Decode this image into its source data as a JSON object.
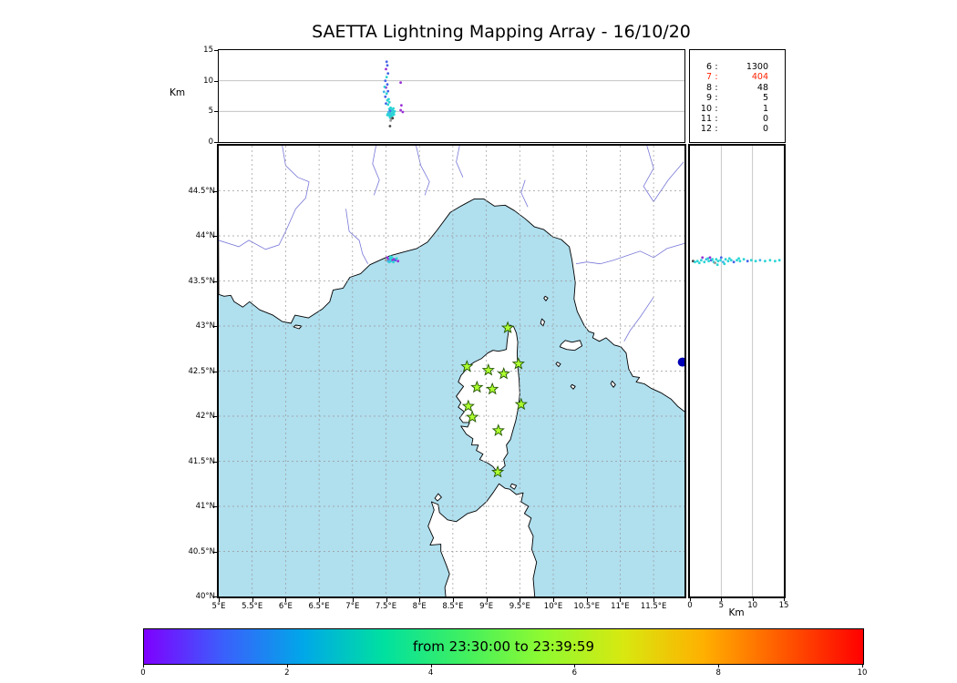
{
  "title": "SAETTA Lightning Mapping Array - 16/10/20",
  "colors": {
    "sea": "#b0dfee",
    "land": "#ffffff",
    "coast": "#000000",
    "river": "#7878d8",
    "grid_map": "#999999",
    "grid_panel": "#bbbbbb",
    "lake": "#0000b4",
    "star_fill": "#adff2f",
    "star_edge": "#225500",
    "legend_highlight": "#ff2200",
    "points": {
      "c": "#2bd4d4",
      "t": "#41b6e8",
      "b": "#4663e8",
      "p": "#9a30d6",
      "g": "#999999",
      "k": "#444444"
    }
  },
  "station_legend": {
    "rows": [
      {
        "n": "6",
        "count": "1300",
        "highlight": false
      },
      {
        "n": "7",
        "count": "404",
        "highlight": true
      },
      {
        "n": "8",
        "count": "48",
        "highlight": false
      },
      {
        "n": "9",
        "count": "5",
        "highlight": false
      },
      {
        "n": "10",
        "count": "1",
        "highlight": false
      },
      {
        "n": "11",
        "count": "0",
        "highlight": false
      },
      {
        "n": "12",
        "count": "0",
        "highlight": false
      }
    ]
  },
  "alt_panel": {
    "axis_label": "Km",
    "ylim": [
      0,
      15
    ],
    "ticks": [
      {
        "value": 15,
        "label": "15"
      },
      {
        "value": 10,
        "label": "10"
      },
      {
        "value": 5,
        "label": "5"
      },
      {
        "value": 0,
        "label": "0"
      }
    ]
  },
  "map_panel": {
    "lat_ticks": [
      {
        "value": 44.5,
        "label": "44.5°N"
      },
      {
        "value": 44,
        "label": "44°N"
      },
      {
        "value": 43.5,
        "label": "43.5°N"
      },
      {
        "value": 43,
        "label": "43°N"
      },
      {
        "value": 42.5,
        "label": "42.5°N"
      },
      {
        "value": 42,
        "label": "42°N"
      },
      {
        "value": 41.5,
        "label": "41.5°N"
      },
      {
        "value": 41,
        "label": "41°N"
      },
      {
        "value": 40.5,
        "label": "40.5°N"
      },
      {
        "value": 40,
        "label": "40°N"
      }
    ],
    "lon_ticks": [
      {
        "value": 5,
        "label": "5°E"
      },
      {
        "value": 5.5,
        "label": "5.5°E"
      },
      {
        "value": 6,
        "label": "6°E"
      },
      {
        "value": 6.5,
        "label": "6.5°E"
      },
      {
        "value": 7,
        "label": "7°E"
      },
      {
        "value": 7.5,
        "label": "7.5°E"
      },
      {
        "value": 8,
        "label": "8°E"
      },
      {
        "value": 8.5,
        "label": "8.5°E"
      },
      {
        "value": 9,
        "label": "9°E"
      },
      {
        "value": 9.5,
        "label": "9.5°E"
      },
      {
        "value": 10,
        "label": "10°E"
      },
      {
        "value": 10.5,
        "label": "10.5°E"
      },
      {
        "value": 11,
        "label": "11°E"
      },
      {
        "value": 11.5,
        "label": "11.5°E"
      }
    ]
  },
  "lat_panel": {
    "axis_label": "Km",
    "xlim": [
      0,
      15
    ],
    "ticks": [
      {
        "value": 0,
        "label": "0"
      },
      {
        "value": 5,
        "label": "5"
      },
      {
        "value": 10,
        "label": "10"
      },
      {
        "value": 15,
        "label": "15"
      }
    ]
  },
  "colorbar": {
    "label": "from 23:30:00 to 23:39:59",
    "range": [
      0,
      10
    ],
    "ticks": [
      {
        "value": 0,
        "label": "0"
      },
      {
        "value": 2,
        "label": "2"
      },
      {
        "value": 4,
        "label": "4"
      },
      {
        "value": 6,
        "label": "6"
      },
      {
        "value": 8,
        "label": "8"
      },
      {
        "value": 10,
        "label": "10"
      }
    ],
    "gradient": [
      "#7f00ff",
      "#3a60fc",
      "#00a8e8",
      "#00e0a0",
      "#40f060",
      "#90fa30",
      "#d8e810",
      "#ffb000",
      "#ff5800",
      "#ff0000"
    ]
  },
  "chart_data": {
    "type": "scatter",
    "title": "SAETTA Lightning Mapping Array - 16/10/20",
    "date": "16/10/20",
    "time_window": {
      "from": "23:30:00",
      "to": "23:39:59"
    },
    "station_counts": [
      {
        "stations": 6,
        "sources": 1300
      },
      {
        "stations": 7,
        "sources": 404
      },
      {
        "stations": 8,
        "sources": 48
      },
      {
        "stations": 9,
        "sources": 5
      },
      {
        "stations": 10,
        "sources": 1
      },
      {
        "stations": 11,
        "sources": 0
      },
      {
        "stations": 12,
        "sources": 0
      }
    ],
    "panels": {
      "alt_vs_lon": {
        "xlim_lon": [
          5,
          11.96
        ],
        "ylim_km": [
          0,
          15
        ],
        "points": [
          [
            7.53,
            4.6,
            "c"
          ],
          [
            7.55,
            4.3,
            "c"
          ],
          [
            7.56,
            4.8,
            "c"
          ],
          [
            7.57,
            4.5,
            "t"
          ],
          [
            7.58,
            4.2,
            "c"
          ],
          [
            7.58,
            5.0,
            "c"
          ],
          [
            7.59,
            4.6,
            "c"
          ],
          [
            7.6,
            4.4,
            "c"
          ],
          [
            7.6,
            5.2,
            "t"
          ],
          [
            7.61,
            4.8,
            "c"
          ],
          [
            7.62,
            4.5,
            "c"
          ],
          [
            7.55,
            5.4,
            "c"
          ],
          [
            7.56,
            5.1,
            "b"
          ],
          [
            7.57,
            5.6,
            "c"
          ],
          [
            7.59,
            5.3,
            "c"
          ],
          [
            7.61,
            5.5,
            "c"
          ],
          [
            7.54,
            4.9,
            "t"
          ],
          [
            7.63,
            5.0,
            "c"
          ],
          [
            7.52,
            4.4,
            "c"
          ],
          [
            7.56,
            4.0,
            "c"
          ],
          [
            7.58,
            3.8,
            "g"
          ],
          [
            7.6,
            3.9,
            "k"
          ],
          [
            7.57,
            3.5,
            "g"
          ],
          [
            7.56,
            2.6,
            "k"
          ],
          [
            7.5,
            6.3,
            "b"
          ],
          [
            7.52,
            6.8,
            "c"
          ],
          [
            7.49,
            7.4,
            "b"
          ],
          [
            7.51,
            7.9,
            "c"
          ],
          [
            7.53,
            8.3,
            "b"
          ],
          [
            7.5,
            8.9,
            "p"
          ],
          [
            7.52,
            9.4,
            "b"
          ],
          [
            7.49,
            10.0,
            "b"
          ],
          [
            7.51,
            10.6,
            "c"
          ],
          [
            7.53,
            11.2,
            "b"
          ],
          [
            7.5,
            11.9,
            "p"
          ],
          [
            7.52,
            12.5,
            "b"
          ],
          [
            7.51,
            13.1,
            "b"
          ],
          [
            7.48,
            9.0,
            "c"
          ],
          [
            7.54,
            7.0,
            "c"
          ],
          [
            7.53,
            6.1,
            "c"
          ],
          [
            7.55,
            6.5,
            "c"
          ],
          [
            7.47,
            8.2,
            "t"
          ],
          [
            7.72,
            5.2,
            "p"
          ],
          [
            7.73,
            6.0,
            "p"
          ],
          [
            7.72,
            9.7,
            "p"
          ],
          [
            7.75,
            4.9,
            "p"
          ]
        ]
      },
      "map": {
        "lon_lim": [
          5,
          11.96
        ],
        "lat_lim": [
          40,
          45
        ],
        "flash_points": [
          [
            7.52,
            43.76,
            "p"
          ],
          [
            7.54,
            43.74,
            "p"
          ],
          [
            7.56,
            43.75,
            "c"
          ],
          [
            7.57,
            43.72,
            "c"
          ],
          [
            7.58,
            43.74,
            "c"
          ],
          [
            7.6,
            43.73,
            "p"
          ],
          [
            7.55,
            43.71,
            "c"
          ],
          [
            7.53,
            43.72,
            "t"
          ],
          [
            7.59,
            43.76,
            "c"
          ],
          [
            7.62,
            43.74,
            "p"
          ],
          [
            7.61,
            43.71,
            "c"
          ],
          [
            7.64,
            43.73,
            "b"
          ],
          [
            7.57,
            43.77,
            "c"
          ],
          [
            7.5,
            43.73,
            "g"
          ],
          [
            7.68,
            43.72,
            "p"
          ],
          [
            7.66,
            43.75,
            "c"
          ]
        ],
        "stations_lma": [
          [
            9.32,
            42.98
          ],
          [
            8.71,
            42.55
          ],
          [
            9.03,
            42.51
          ],
          [
            9.26,
            42.47
          ],
          [
            9.48,
            42.58
          ],
          [
            8.86,
            42.32
          ],
          [
            9.09,
            42.3
          ],
          [
            8.73,
            42.11
          ],
          [
            9.52,
            42.13
          ],
          [
            8.79,
            41.99
          ],
          [
            9.18,
            41.84
          ],
          [
            9.17,
            41.38
          ]
        ]
      },
      "alt_vs_lat": {
        "xlim_km": [
          0,
          15
        ],
        "lat_lim": [
          40,
          45
        ],
        "points": [
          [
            0.5,
            43.72,
            "k"
          ],
          [
            0.8,
            43.71,
            "c"
          ],
          [
            1.2,
            43.72,
            "c"
          ],
          [
            1.5,
            43.7,
            "c"
          ],
          [
            1.8,
            43.73,
            "c"
          ],
          [
            2.0,
            43.76,
            "p"
          ],
          [
            2.3,
            43.71,
            "c"
          ],
          [
            2.6,
            43.74,
            "t"
          ],
          [
            2.9,
            43.75,
            "c"
          ],
          [
            3.0,
            43.72,
            "c"
          ],
          [
            3.2,
            43.76,
            "p"
          ],
          [
            3.4,
            43.73,
            "b"
          ],
          [
            3.6,
            43.74,
            "c"
          ],
          [
            3.8,
            43.71,
            "c"
          ],
          [
            4.0,
            43.7,
            "g"
          ],
          [
            4.2,
            43.74,
            "c"
          ],
          [
            4.4,
            43.68,
            "c"
          ],
          [
            4.5,
            43.72,
            "c"
          ],
          [
            4.9,
            43.73,
            "c"
          ],
          [
            5.0,
            43.76,
            "b"
          ],
          [
            5.3,
            43.71,
            "t"
          ],
          [
            5.5,
            43.69,
            "c"
          ],
          [
            5.7,
            43.74,
            "c"
          ],
          [
            6.1,
            43.72,
            "c"
          ],
          [
            6.3,
            43.75,
            "c"
          ],
          [
            6.6,
            43.73,
            "c"
          ],
          [
            7.0,
            43.71,
            "b"
          ],
          [
            7.5,
            43.73,
            "c"
          ],
          [
            7.8,
            43.75,
            "c"
          ],
          [
            8.0,
            43.72,
            "c"
          ],
          [
            8.6,
            43.74,
            "c"
          ],
          [
            9.2,
            43.72,
            "b"
          ],
          [
            9.8,
            43.73,
            "c"
          ],
          [
            10.5,
            43.72,
            "c"
          ],
          [
            11.2,
            43.73,
            "t"
          ],
          [
            12.0,
            43.72,
            "c"
          ],
          [
            12.8,
            43.73,
            "c"
          ],
          [
            13.6,
            43.72,
            "c"
          ],
          [
            14.3,
            43.73,
            "c"
          ]
        ]
      }
    },
    "color_legend": "time within window mapped purple(early) to red(late), 0-10 minutes"
  }
}
